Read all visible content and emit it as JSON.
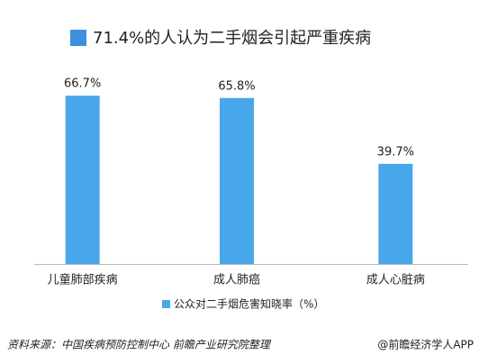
{
  "chart_data": {
    "type": "bar",
    "title": "71.4%的人认为二手烟会引起严重疾病",
    "categories": [
      "儿童肺部疾病",
      "成人肺癌",
      "成人心脏病"
    ],
    "series": [
      {
        "name": "公众对二手烟危害知晓率（%）",
        "color": "#47a7ea",
        "values": [
          66.7,
          65.8,
          39.7
        ],
        "value_labels": [
          "66.7%",
          "65.8%",
          "39.7%"
        ]
      }
    ],
    "source": "资料来源：中国疾病预防控制中心 前瞻产业研究院整理",
    "credit": "@前瞻经济学人APP"
  }
}
